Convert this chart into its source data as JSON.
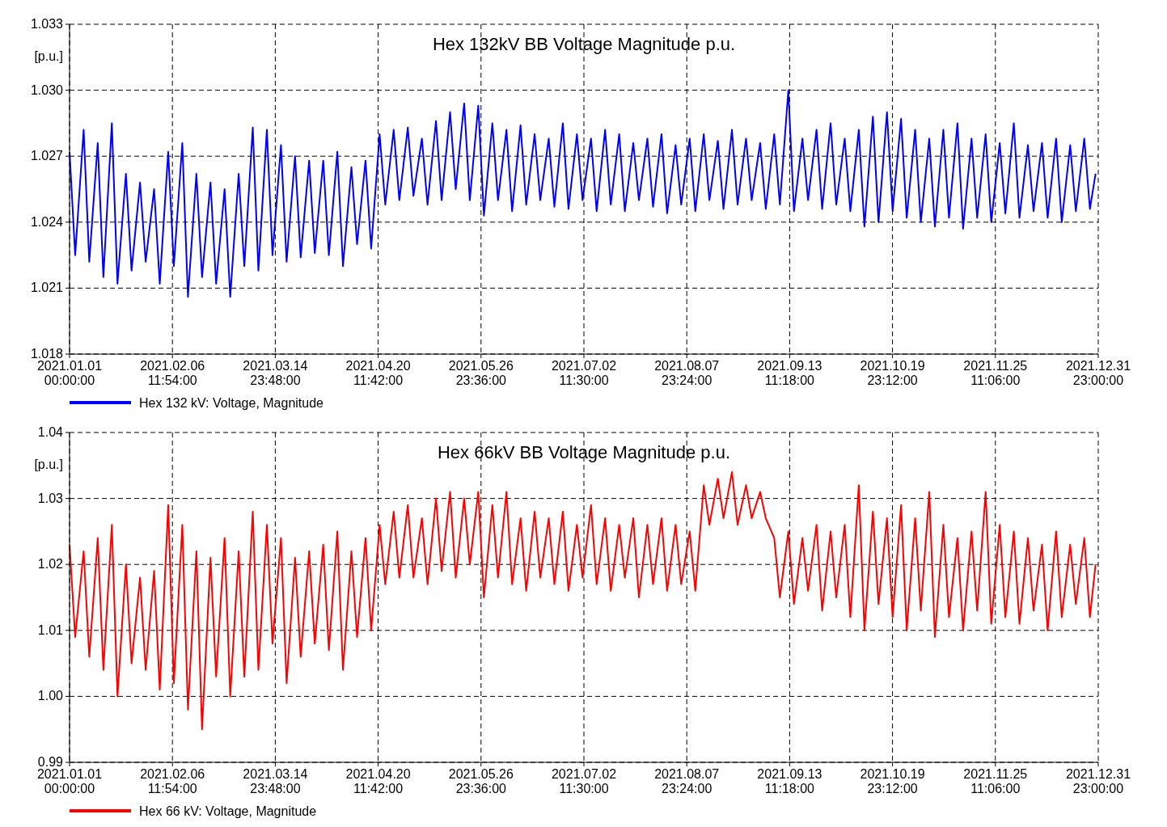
{
  "chart_data": [
    {
      "type": "line",
      "title": "Hex 132kV BB Voltage Magnitude p.u.",
      "ylabel": "[p.u.]",
      "legend": "bottom left",
      "grid": true,
      "xlim": [
        "2021-01-01T00:00",
        "2021-12-31T23:00"
      ],
      "xticks": [
        {
          "value": "2021-01-01T00:00",
          "label": "2021.01.01\n00:00:00"
        },
        {
          "value": "2021-02-06T11:54",
          "label": "2021.02.06\n11:54:00"
        },
        {
          "value": "2021-03-14T23:48",
          "label": "2021.03.14\n23:48:00"
        },
        {
          "value": "2021-04-20T11:42",
          "label": "2021.04.20\n11:42:00"
        },
        {
          "value": "2021-05-26T23:36",
          "label": "2021.05.26\n23:36:00"
        },
        {
          "value": "2021-07-02T11:30",
          "label": "2021.07.02\n11:30:00"
        },
        {
          "value": "2021-08-07T23:24",
          "label": "2021.08.07\n23:24:00"
        },
        {
          "value": "2021-09-13T11:18",
          "label": "2021.09.13\n11:18:00"
        },
        {
          "value": "2021-10-19T23:12",
          "label": "2021.10.19\n23:12:00"
        },
        {
          "value": "2021-11-25T11:06",
          "label": "2021.11.25\n11:06:00"
        },
        {
          "value": "2021-12-31T23:00",
          "label": "2021.12.31\n23:00:00"
        }
      ],
      "ylim": [
        1.018,
        1.033
      ],
      "yticks": [
        1.018,
        1.021,
        1.024,
        1.027,
        {
          "value": 1.03,
          "label": "1.030"
        },
        1.033
      ],
      "x": [
        "2021-01-01",
        "2021-01-03",
        "2021-01-06",
        "2021-01-08",
        "2021-01-11",
        "2021-01-13",
        "2021-01-16",
        "2021-01-18",
        "2021-01-21",
        "2021-01-23",
        "2021-01-26",
        "2021-01-28",
        "2021-01-31",
        "2021-02-02",
        "2021-02-05",
        "2021-02-07",
        "2021-02-10",
        "2021-02-12",
        "2021-02-15",
        "2021-02-17",
        "2021-02-20",
        "2021-02-22",
        "2021-02-25",
        "2021-02-27",
        "2021-03-02",
        "2021-03-04",
        "2021-03-07",
        "2021-03-09",
        "2021-03-12",
        "2021-03-14",
        "2021-03-17",
        "2021-03-19",
        "2021-03-22",
        "2021-03-24",
        "2021-03-27",
        "2021-03-29",
        "2021-04-01",
        "2021-04-03",
        "2021-04-06",
        "2021-04-08",
        "2021-04-11",
        "2021-04-13",
        "2021-04-16",
        "2021-04-18",
        "2021-04-21",
        "2021-04-23",
        "2021-04-26",
        "2021-04-28",
        "2021-05-01",
        "2021-05-03",
        "2021-05-06",
        "2021-05-08",
        "2021-05-11",
        "2021-05-13",
        "2021-05-16",
        "2021-05-18",
        "2021-05-21",
        "2021-05-23",
        "2021-05-26",
        "2021-05-28",
        "2021-05-31",
        "2021-06-02",
        "2021-06-05",
        "2021-06-07",
        "2021-06-10",
        "2021-06-12",
        "2021-06-15",
        "2021-06-17",
        "2021-06-20",
        "2021-06-22",
        "2021-06-25",
        "2021-06-27",
        "2021-06-30",
        "2021-07-02",
        "2021-07-05",
        "2021-07-07",
        "2021-07-10",
        "2021-07-12",
        "2021-07-15",
        "2021-07-17",
        "2021-07-20",
        "2021-07-22",
        "2021-07-25",
        "2021-07-27",
        "2021-07-30",
        "2021-08-01",
        "2021-08-04",
        "2021-08-06",
        "2021-08-09",
        "2021-08-11",
        "2021-08-14",
        "2021-08-16",
        "2021-08-19",
        "2021-08-21",
        "2021-08-24",
        "2021-08-26",
        "2021-08-29",
        "2021-08-31",
        "2021-09-03",
        "2021-09-05",
        "2021-09-08",
        "2021-09-10",
        "2021-09-13",
        "2021-09-15",
        "2021-09-18",
        "2021-09-20",
        "2021-09-23",
        "2021-09-25",
        "2021-09-28",
        "2021-09-30",
        "2021-10-03",
        "2021-10-05",
        "2021-10-08",
        "2021-10-10",
        "2021-10-13",
        "2021-10-15",
        "2021-10-18",
        "2021-10-20",
        "2021-10-23",
        "2021-10-25",
        "2021-10-28",
        "2021-10-30",
        "2021-11-02",
        "2021-11-04",
        "2021-11-07",
        "2021-11-09",
        "2021-11-12",
        "2021-11-14",
        "2021-11-17",
        "2021-11-19",
        "2021-11-22",
        "2021-11-24",
        "2021-11-27",
        "2021-11-29",
        "2021-12-02",
        "2021-12-04",
        "2021-12-07",
        "2021-12-09",
        "2021-12-12",
        "2021-12-14",
        "2021-12-17",
        "2021-12-19",
        "2021-12-22",
        "2021-12-24",
        "2021-12-27",
        "2021-12-29",
        "2021-12-31"
      ],
      "series": [
        {
          "name": "Hex 132 kV: Voltage, Magnitude",
          "color": "#0000ff",
          "values": [
            1.0272,
            1.0225,
            1.0282,
            1.0222,
            1.0276,
            1.0215,
            1.0285,
            1.0212,
            1.0262,
            1.0218,
            1.0258,
            1.0222,
            1.0255,
            1.0212,
            1.0272,
            1.022,
            1.0276,
            1.0206,
            1.0262,
            1.0215,
            1.0258,
            1.0212,
            1.0255,
            1.0206,
            1.0262,
            1.022,
            1.0283,
            1.0218,
            1.0282,
            1.0225,
            1.0275,
            1.0222,
            1.027,
            1.0224,
            1.0268,
            1.0226,
            1.0268,
            1.0225,
            1.0272,
            1.022,
            1.0265,
            1.023,
            1.0268,
            1.0228,
            1.028,
            1.0248,
            1.0282,
            1.025,
            1.0283,
            1.0252,
            1.0278,
            1.0248,
            1.0286,
            1.025,
            1.029,
            1.0255,
            1.0294,
            1.025,
            1.0293,
            1.0243,
            1.0285,
            1.025,
            1.0282,
            1.0245,
            1.0284,
            1.0248,
            1.028,
            1.025,
            1.0278,
            1.0247,
            1.0285,
            1.0246,
            1.028,
            1.025,
            1.0278,
            1.0245,
            1.0282,
            1.0248,
            1.028,
            1.0245,
            1.0276,
            1.025,
            1.0278,
            1.0247,
            1.028,
            1.0244,
            1.0275,
            1.0248,
            1.0278,
            1.0245,
            1.028,
            1.025,
            1.0277,
            1.0246,
            1.0282,
            1.0248,
            1.0278,
            1.025,
            1.0276,
            1.0246,
            1.028,
            1.0248,
            1.03,
            1.0245,
            1.0278,
            1.025,
            1.0282,
            1.0246,
            1.0285,
            1.0248,
            1.0278,
            1.0245,
            1.0282,
            1.0238,
            1.0288,
            1.024,
            1.029,
            1.0245,
            1.0287,
            1.0242,
            1.0282,
            1.024,
            1.0278,
            1.0238,
            1.0282,
            1.0242,
            1.0285,
            1.0237,
            1.0278,
            1.0242,
            1.028,
            1.024,
            1.0276,
            1.0244,
            1.0285,
            1.0242,
            1.0275,
            1.0245,
            1.0276,
            1.0242,
            1.0278,
            1.024,
            1.0275,
            1.0245,
            1.0278,
            1.0246,
            1.0262
          ]
        }
      ]
    },
    {
      "type": "line",
      "title": "Hex 66kV BB Voltage Magnitude p.u.",
      "ylabel": "[p.u.]",
      "legend": "bottom left",
      "grid": true,
      "xlim": [
        "2021-01-01T00:00",
        "2021-12-31T23:00"
      ],
      "xticks": [
        {
          "value": "2021-01-01T00:00",
          "label": "2021.01.01\n00:00:00"
        },
        {
          "value": "2021-02-06T11:54",
          "label": "2021.02.06\n11:54:00"
        },
        {
          "value": "2021-03-14T23:48",
          "label": "2021.03.14\n23:48:00"
        },
        {
          "value": "2021-04-20T11:42",
          "label": "2021.04.20\n11:42:00"
        },
        {
          "value": "2021-05-26T23:36",
          "label": "2021.05.26\n23:36:00"
        },
        {
          "value": "2021-07-02T11:30",
          "label": "2021.07.02\n11:30:00"
        },
        {
          "value": "2021-08-07T23:24",
          "label": "2021.08.07\n23:24:00"
        },
        {
          "value": "2021-09-13T11:18",
          "label": "2021.09.13\n11:18:00"
        },
        {
          "value": "2021-10-19T23:12",
          "label": "2021.10.19\n23:12:00"
        },
        {
          "value": "2021-11-25T11:06",
          "label": "2021.11.25\n11:06:00"
        },
        {
          "value": "2021-12-31T23:00",
          "label": "2021.12.31\n23:00:00"
        }
      ],
      "ylim": [
        0.99,
        1.04
      ],
      "yticks": [
        0.99,
        {
          "value": 1.0,
          "label": "1.00"
        },
        1.01,
        1.02,
        1.03,
        1.04
      ],
      "x": [
        "2021-01-01",
        "2021-01-03",
        "2021-01-06",
        "2021-01-08",
        "2021-01-11",
        "2021-01-13",
        "2021-01-16",
        "2021-01-18",
        "2021-01-21",
        "2021-01-23",
        "2021-01-26",
        "2021-01-28",
        "2021-01-31",
        "2021-02-02",
        "2021-02-05",
        "2021-02-07",
        "2021-02-10",
        "2021-02-12",
        "2021-02-15",
        "2021-02-17",
        "2021-02-20",
        "2021-02-22",
        "2021-02-25",
        "2021-02-27",
        "2021-03-02",
        "2021-03-04",
        "2021-03-07",
        "2021-03-09",
        "2021-03-12",
        "2021-03-14",
        "2021-03-17",
        "2021-03-19",
        "2021-03-22",
        "2021-03-24",
        "2021-03-27",
        "2021-03-29",
        "2021-04-01",
        "2021-04-03",
        "2021-04-06",
        "2021-04-08",
        "2021-04-11",
        "2021-04-13",
        "2021-04-16",
        "2021-04-18",
        "2021-04-21",
        "2021-04-23",
        "2021-04-26",
        "2021-04-28",
        "2021-05-01",
        "2021-05-03",
        "2021-05-06",
        "2021-05-08",
        "2021-05-11",
        "2021-05-13",
        "2021-05-16",
        "2021-05-18",
        "2021-05-21",
        "2021-05-23",
        "2021-05-26",
        "2021-05-28",
        "2021-05-31",
        "2021-06-02",
        "2021-06-05",
        "2021-06-07",
        "2021-06-10",
        "2021-06-12",
        "2021-06-15",
        "2021-06-17",
        "2021-06-20",
        "2021-06-22",
        "2021-06-25",
        "2021-06-27",
        "2021-06-30",
        "2021-07-02",
        "2021-07-05",
        "2021-07-07",
        "2021-07-10",
        "2021-07-12",
        "2021-07-15",
        "2021-07-17",
        "2021-07-20",
        "2021-07-22",
        "2021-07-25",
        "2021-07-27",
        "2021-07-30",
        "2021-08-01",
        "2021-08-04",
        "2021-08-06",
        "2021-08-09",
        "2021-08-11",
        "2021-08-14",
        "2021-08-16",
        "2021-08-19",
        "2021-08-21",
        "2021-08-24",
        "2021-08-26",
        "2021-08-29",
        "2021-08-31",
        "2021-09-03",
        "2021-09-05",
        "2021-09-08",
        "2021-09-10",
        "2021-09-13",
        "2021-09-15",
        "2021-09-18",
        "2021-09-20",
        "2021-09-23",
        "2021-09-25",
        "2021-09-28",
        "2021-09-30",
        "2021-10-03",
        "2021-10-05",
        "2021-10-08",
        "2021-10-10",
        "2021-10-13",
        "2021-10-15",
        "2021-10-18",
        "2021-10-20",
        "2021-10-23",
        "2021-10-25",
        "2021-10-28",
        "2021-10-30",
        "2021-11-02",
        "2021-11-04",
        "2021-11-07",
        "2021-11-09",
        "2021-11-12",
        "2021-11-14",
        "2021-11-17",
        "2021-11-19",
        "2021-11-22",
        "2021-11-24",
        "2021-11-27",
        "2021-11-29",
        "2021-12-02",
        "2021-12-04",
        "2021-12-07",
        "2021-12-09",
        "2021-12-12",
        "2021-12-14",
        "2021-12-17",
        "2021-12-19",
        "2021-12-22",
        "2021-12-24",
        "2021-12-27",
        "2021-12-29",
        "2021-12-31"
      ],
      "series": [
        {
          "name": "Hex 66 kV: Voltage, Magnitude",
          "color": "#ff0000",
          "values": [
            1.023,
            1.009,
            1.022,
            1.006,
            1.024,
            1.004,
            1.026,
            1.0,
            1.02,
            1.005,
            1.018,
            1.004,
            1.019,
            1.001,
            1.029,
            1.002,
            1.026,
            0.998,
            1.022,
            0.995,
            1.021,
            1.003,
            1.024,
            1.0,
            1.022,
            1.003,
            1.028,
            1.004,
            1.026,
            1.008,
            1.024,
            1.002,
            1.021,
            1.006,
            1.022,
            1.008,
            1.023,
            1.007,
            1.025,
            1.004,
            1.022,
            1.009,
            1.024,
            1.01,
            1.026,
            1.017,
            1.028,
            1.018,
            1.029,
            1.018,
            1.027,
            1.017,
            1.03,
            1.019,
            1.031,
            1.018,
            1.03,
            1.02,
            1.031,
            1.015,
            1.029,
            1.018,
            1.031,
            1.017,
            1.027,
            1.016,
            1.028,
            1.018,
            1.027,
            1.017,
            1.028,
            1.016,
            1.026,
            1.018,
            1.029,
            1.017,
            1.027,
            1.016,
            1.026,
            1.018,
            1.027,
            1.015,
            1.026,
            1.017,
            1.027,
            1.016,
            1.026,
            1.017,
            1.025,
            1.016,
            1.032,
            1.026,
            1.033,
            1.027,
            1.034,
            1.026,
            1.032,
            1.027,
            1.031,
            1.027,
            1.024,
            1.015,
            1.025,
            1.014,
            1.024,
            1.016,
            1.026,
            1.013,
            1.025,
            1.015,
            1.026,
            1.012,
            1.032,
            1.01,
            1.028,
            1.014,
            1.027,
            1.012,
            1.029,
            1.01,
            1.027,
            1.013,
            1.031,
            1.009,
            1.026,
            1.012,
            1.024,
            1.01,
            1.025,
            1.013,
            1.031,
            1.011,
            1.026,
            1.012,
            1.025,
            1.011,
            1.024,
            1.013,
            1.023,
            1.01,
            1.025,
            1.012,
            1.023,
            1.014,
            1.024,
            1.012,
            1.02
          ]
        }
      ]
    }
  ]
}
